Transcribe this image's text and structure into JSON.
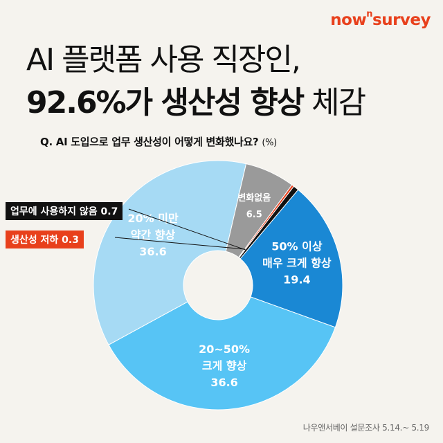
{
  "brand": {
    "logo_prefix": "now",
    "logo_sup": "n",
    "logo_suffix": "survey",
    "color": "#e8401c"
  },
  "title": {
    "line1": "AI 플랫폼 사용 직장인,",
    "line2_part1": "92.6%가 ",
    "line2_part2": "생산성 향상",
    "line2_part3": " 체감"
  },
  "question": {
    "text_part1": "Q. AI 도입으로 ",
    "text_bold": "업무 생산성",
    "text_part2": "이 어떻게 변화했나요?",
    "unit": "(%)"
  },
  "callouts": {
    "no_use": "업무에 사용하지 않음 0.7",
    "decrease": "생산성 저하 0.3"
  },
  "footer": "나우앤서베이 설문조사 5.14.~ 5.19",
  "chart_data": {
    "type": "pie",
    "style": "donut",
    "unit": "%",
    "slices": [
      {
        "label": "50% 이상\n매우 크게 향상",
        "value": 19.4,
        "color": "#1a88d4",
        "label_color": "#ffffff"
      },
      {
        "label": "20~50%\n크게 향상",
        "value": 36.6,
        "color": "#57c4f5",
        "label_color": "#ffffff"
      },
      {
        "label": "20% 미만\n약간 향상",
        "value": 36.6,
        "color": "#a6daf4",
        "label_color": "#ffffff"
      },
      {
        "label": "변화없음",
        "value": 6.5,
        "color": "#9a9a9a",
        "label_color": "#ffffff"
      },
      {
        "label": "생산성 저하",
        "value": 0.3,
        "color": "#e8401c",
        "label_color": ""
      },
      {
        "label": "업무에 사용하지 않음",
        "value": 0.7,
        "color": "#111111",
        "label_color": ""
      }
    ]
  }
}
